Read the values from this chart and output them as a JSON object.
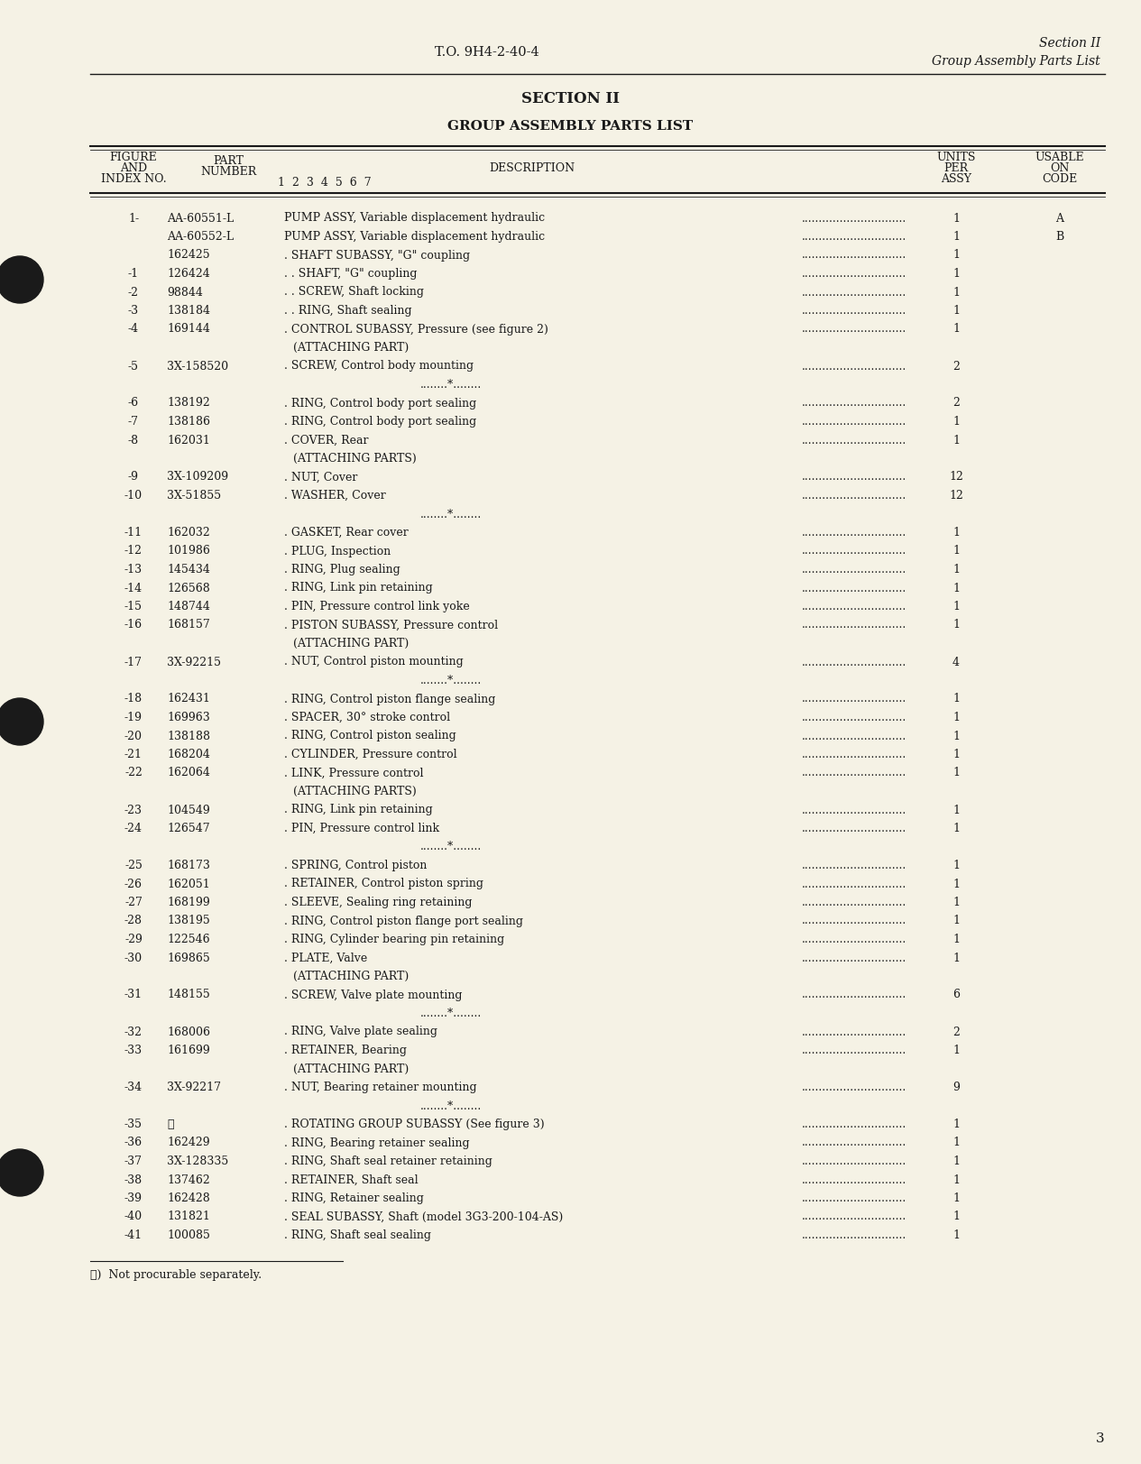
{
  "bg_color": "#f0ede0",
  "page_color": "#f5f2e5",
  "header_left": "T.O. 9H4-2-40-4",
  "header_right_line1": "Section II",
  "header_right_line2": "Group Assembly Parts List",
  "title_line1": "SECTION II",
  "title_line2": "GROUP ASSEMBLY PARTS LIST",
  "rows": [
    {
      "index": "1-",
      "part": "AA-60551-L",
      "desc": "PUMP ASSY, Variable displacement hydraulic",
      "dots": true,
      "units": "1",
      "code": "A"
    },
    {
      "index": "",
      "part": "AA-60552-L",
      "desc": "PUMP ASSY, Variable displacement hydraulic",
      "dots": true,
      "units": "1",
      "code": "B"
    },
    {
      "index": "",
      "part": "162425",
      "desc": ". SHAFT SUBASSY, \"G\" coupling",
      "dots": true,
      "units": "1",
      "code": ""
    },
    {
      "index": "-1",
      "part": "126424",
      "desc": ". . SHAFT, \"G\" coupling",
      "dots": true,
      "units": "1",
      "code": ""
    },
    {
      "index": "-2",
      "part": "98844",
      "desc": ". . SCREW, Shaft locking",
      "dots": true,
      "units": "1",
      "code": ""
    },
    {
      "index": "-3",
      "part": "138184",
      "desc": ". . RING, Shaft sealing",
      "dots": true,
      "units": "1",
      "code": ""
    },
    {
      "index": "-4",
      "part": "169144",
      "desc": ". CONTROL SUBASSY, Pressure (see figure 2)",
      "dots": true,
      "units": "1",
      "code": ""
    },
    {
      "index": "",
      "part": "",
      "desc": "(ATTACHING PART)",
      "dots": false,
      "units": "",
      "code": ""
    },
    {
      "index": "-5",
      "part": "3X-158520",
      "desc": ". SCREW, Control body mounting",
      "dots": true,
      "units": "2",
      "code": ""
    },
    {
      "index": "",
      "part": "",
      "desc": "SEP",
      "dots": false,
      "units": "",
      "code": ""
    },
    {
      "index": "-6",
      "part": "138192",
      "desc": ". RING, Control body port sealing",
      "dots": true,
      "units": "2",
      "code": ""
    },
    {
      "index": "-7",
      "part": "138186",
      "desc": ". RING, Control body port sealing",
      "dots": true,
      "units": "1",
      "code": ""
    },
    {
      "index": "-8",
      "part": "162031",
      "desc": ". COVER, Rear",
      "dots": true,
      "units": "1",
      "code": ""
    },
    {
      "index": "",
      "part": "",
      "desc": "(ATTACHING PARTS)",
      "dots": false,
      "units": "",
      "code": ""
    },
    {
      "index": "-9",
      "part": "3X-109209",
      "desc": ". NUT, Cover",
      "dots": true,
      "units": "12",
      "code": ""
    },
    {
      "index": "-10",
      "part": "3X-51855",
      "desc": ". WASHER, Cover",
      "dots": true,
      "units": "12",
      "code": ""
    },
    {
      "index": "",
      "part": "",
      "desc": "SEP",
      "dots": false,
      "units": "",
      "code": ""
    },
    {
      "index": "-11",
      "part": "162032",
      "desc": ". GASKET, Rear cover",
      "dots": true,
      "units": "1",
      "code": ""
    },
    {
      "index": "-12",
      "part": "101986",
      "desc": ". PLUG, Inspection",
      "dots": true,
      "units": "1",
      "code": ""
    },
    {
      "index": "-13",
      "part": "145434",
      "desc": ". RING, Plug sealing",
      "dots": true,
      "units": "1",
      "code": ""
    },
    {
      "index": "-14",
      "part": "126568",
      "desc": ". RING, Link pin retaining",
      "dots": true,
      "units": "1",
      "code": ""
    },
    {
      "index": "-15",
      "part": "148744",
      "desc": ". PIN, Pressure control link yoke",
      "dots": true,
      "units": "1",
      "code": ""
    },
    {
      "index": "-16",
      "part": "168157",
      "desc": ". PISTON SUBASSY, Pressure control",
      "dots": true,
      "units": "1",
      "code": ""
    },
    {
      "index": "",
      "part": "",
      "desc": "(ATTACHING PART)",
      "dots": false,
      "units": "",
      "code": ""
    },
    {
      "index": "-17",
      "part": "3X-92215",
      "desc": ". NUT, Control piston mounting",
      "dots": true,
      "units": "4",
      "code": ""
    },
    {
      "index": "",
      "part": "",
      "desc": "SEP",
      "dots": false,
      "units": "",
      "code": ""
    },
    {
      "index": "-18",
      "part": "162431",
      "desc": ". RING, Control piston flange sealing",
      "dots": true,
      "units": "1",
      "code": ""
    },
    {
      "index": "-19",
      "part": "169963",
      "desc": ". SPACER, 30° stroke control",
      "dots": true,
      "units": "1",
      "code": ""
    },
    {
      "index": "-20",
      "part": "138188",
      "desc": ". RING, Control piston sealing",
      "dots": true,
      "units": "1",
      "code": ""
    },
    {
      "index": "-21",
      "part": "168204",
      "desc": ". CYLINDER, Pressure control",
      "dots": true,
      "units": "1",
      "code": ""
    },
    {
      "index": "-22",
      "part": "162064",
      "desc": ". LINK, Pressure control",
      "dots": true,
      "units": "1",
      "code": ""
    },
    {
      "index": "",
      "part": "",
      "desc": "(ATTACHING PARTS)",
      "dots": false,
      "units": "",
      "code": ""
    },
    {
      "index": "-23",
      "part": "104549",
      "desc": ". RING, Link pin retaining",
      "dots": true,
      "units": "1",
      "code": ""
    },
    {
      "index": "-24",
      "part": "126547",
      "desc": ". PIN, Pressure control link",
      "dots": true,
      "units": "1",
      "code": ""
    },
    {
      "index": "",
      "part": "",
      "desc": "SEP",
      "dots": false,
      "units": "",
      "code": ""
    },
    {
      "index": "-25",
      "part": "168173",
      "desc": ". SPRING, Control piston",
      "dots": true,
      "units": "1",
      "code": ""
    },
    {
      "index": "-26",
      "part": "162051",
      "desc": ". RETAINER, Control piston spring",
      "dots": true,
      "units": "1",
      "code": ""
    },
    {
      "index": "-27",
      "part": "168199",
      "desc": ". SLEEVE, Sealing ring retaining",
      "dots": true,
      "units": "1",
      "code": ""
    },
    {
      "index": "-28",
      "part": "138195",
      "desc": ". RING, Control piston flange port sealing",
      "dots": true,
      "units": "1",
      "code": ""
    },
    {
      "index": "-29",
      "part": "122546",
      "desc": ". RING, Cylinder bearing pin retaining",
      "dots": true,
      "units": "1",
      "code": ""
    },
    {
      "index": "-30",
      "part": "169865",
      "desc": ". PLATE, Valve",
      "dots": true,
      "units": "1",
      "code": ""
    },
    {
      "index": "",
      "part": "",
      "desc": "(ATTACHING PART)",
      "dots": false,
      "units": "",
      "code": ""
    },
    {
      "index": "-31",
      "part": "148155",
      "desc": ". SCREW, Valve plate mounting",
      "dots": true,
      "units": "6",
      "code": ""
    },
    {
      "index": "",
      "part": "",
      "desc": "SEP",
      "dots": false,
      "units": "",
      "code": ""
    },
    {
      "index": "-32",
      "part": "168006",
      "desc": ". RING, Valve plate sealing",
      "dots": true,
      "units": "2",
      "code": ""
    },
    {
      "index": "-33",
      "part": "161699",
      "desc": ". RETAINER, Bearing",
      "dots": true,
      "units": "1",
      "code": ""
    },
    {
      "index": "",
      "part": "",
      "desc": "(ATTACHING PART)",
      "dots": false,
      "units": "",
      "code": ""
    },
    {
      "index": "-34",
      "part": "3X-92217",
      "desc": ". NUT, Bearing retainer mounting",
      "dots": true,
      "units": "9",
      "code": ""
    },
    {
      "index": "",
      "part": "",
      "desc": "SEP",
      "dots": false,
      "units": "",
      "code": ""
    },
    {
      "index": "-35",
      "part": "ℓ",
      "desc": ". ROTATING GROUP SUBASSY (See figure 3)",
      "dots": true,
      "units": "1",
      "code": ""
    },
    {
      "index": "-36",
      "part": "162429",
      "desc": ". RING, Bearing retainer sealing",
      "dots": true,
      "units": "1",
      "code": ""
    },
    {
      "index": "-37",
      "part": "3X-128335",
      "desc": ". RING, Shaft seal retainer retaining",
      "dots": true,
      "units": "1",
      "code": ""
    },
    {
      "index": "-38",
      "part": "137462",
      "desc": ". RETAINER, Shaft seal",
      "dots": true,
      "units": "1",
      "code": ""
    },
    {
      "index": "-39",
      "part": "162428",
      "desc": ". RING, Retainer sealing",
      "dots": true,
      "units": "1",
      "code": ""
    },
    {
      "index": "-40",
      "part": "131821",
      "desc": ". SEAL SUBASSY, Shaft (model 3G3-200-104-AS)",
      "dots": true,
      "units": "1",
      "code": ""
    },
    {
      "index": "-41",
      "part": "100085",
      "desc": ". RING, Shaft seal sealing",
      "dots": true,
      "units": "1",
      "code": ""
    }
  ],
  "footnote": "ℓ)  Not procurable separately.",
  "page_number": "3",
  "text_color": "#1a1a1a"
}
